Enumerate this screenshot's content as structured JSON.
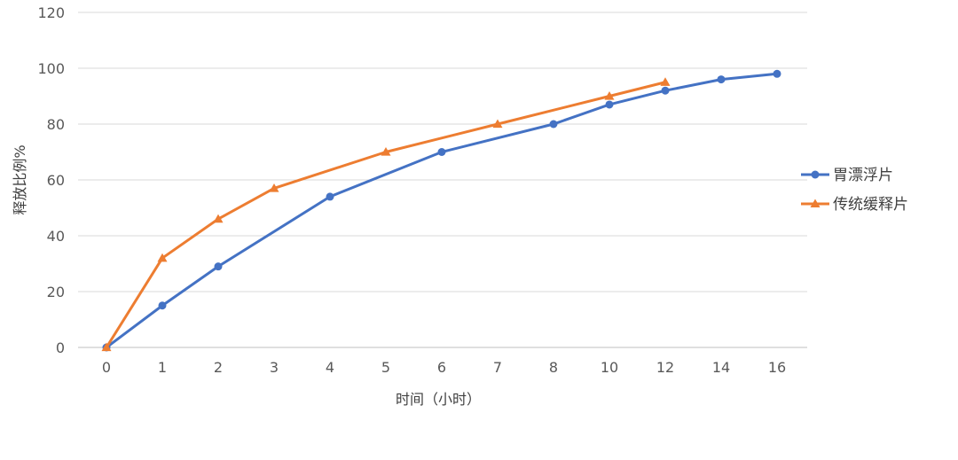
{
  "chart_data": {
    "type": "line",
    "categories": [
      "0",
      "1",
      "2",
      "3",
      "4",
      "5",
      "6",
      "7",
      "8",
      "10",
      "12",
      "14",
      "16"
    ],
    "series": [
      {
        "name": "胃漂浮片",
        "color": "#4472C4",
        "marker": "circle",
        "values": [
          0,
          15,
          29,
          null,
          54,
          null,
          70,
          null,
          80,
          87,
          92,
          96,
          98
        ]
      },
      {
        "name": "传统缓释片",
        "color": "#ED7D31",
        "marker": "triangle",
        "values": [
          0,
          32,
          46,
          57,
          null,
          70,
          null,
          80,
          null,
          90,
          95,
          null,
          null
        ]
      }
    ],
    "xlabel": "时间（小时）",
    "ylabel": "释放比例%",
    "ylim": [
      0,
      120
    ],
    "yticks": [
      0,
      20,
      40,
      60,
      80,
      100,
      120
    ],
    "grid": "horizontal",
    "legend": "right"
  }
}
